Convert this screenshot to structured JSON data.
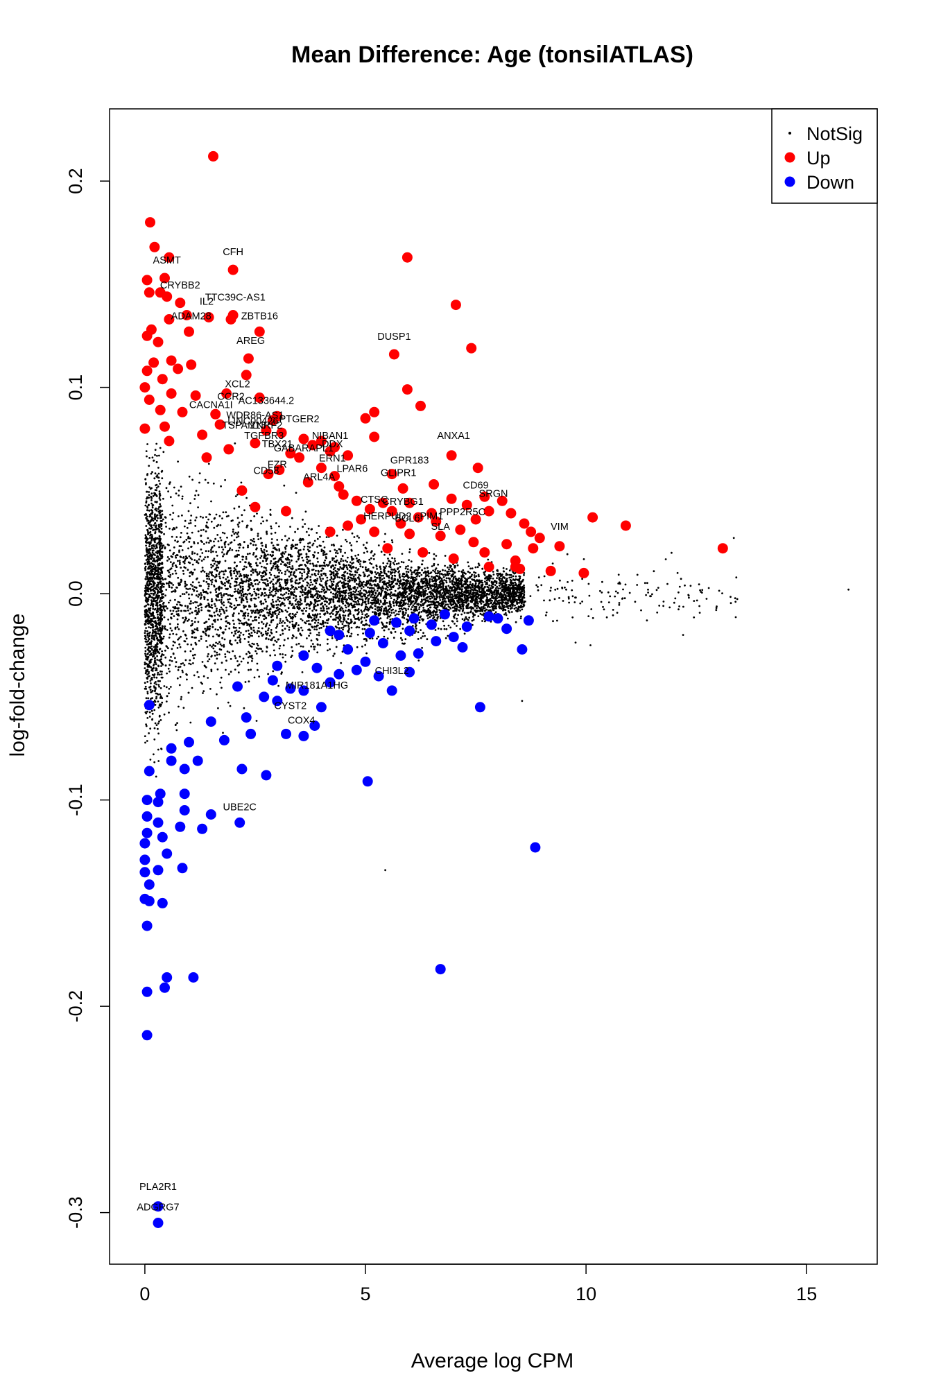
{
  "chart_data": {
    "type": "scatter",
    "title": "Mean Difference: Age (tonsilATLAS)",
    "xlabel": "Average log CPM",
    "ylabel": "log-fold-change",
    "xlim": [
      -0.8,
      16.6
    ],
    "ylim": [
      -0.325,
      0.235
    ],
    "x_ticks": [
      0,
      5,
      10,
      15
    ],
    "x_tick_labels": [
      "0",
      "5",
      "10",
      "15"
    ],
    "y_ticks": [
      -0.3,
      -0.2,
      -0.1,
      0.0,
      0.1,
      0.2
    ],
    "y_tick_labels": [
      "-0.3",
      "-0.2",
      "-0.1",
      "0.0",
      "0.1",
      "0.2"
    ],
    "grid": false,
    "legend_position": "top-right",
    "colors": {
      "NotSig": "#000000",
      "Up": "#ff0000",
      "Down": "#0000ff"
    },
    "legend": [
      {
        "name": "NotSig",
        "color": "#000000",
        "marker": "small-dot"
      },
      {
        "name": "Up",
        "color": "#ff0000",
        "marker": "dot"
      },
      {
        "name": "Down",
        "color": "#0000ff",
        "marker": "dot"
      }
    ],
    "series": [
      {
        "name": "Up",
        "points": [
          [
            1.55,
            0.212
          ],
          [
            0.12,
            0.18
          ],
          [
            0.22,
            0.168
          ],
          [
            0.55,
            0.163
          ],
          [
            5.95,
            0.163
          ],
          [
            2.0,
            0.157
          ],
          [
            0.45,
            0.153
          ],
          [
            0.05,
            0.152
          ],
          [
            0.35,
            0.146
          ],
          [
            0.5,
            0.144
          ],
          [
            0.1,
            0.146
          ],
          [
            0.8,
            0.141
          ],
          [
            7.05,
            0.14
          ],
          [
            0.95,
            0.135
          ],
          [
            2.0,
            0.135
          ],
          [
            1.45,
            0.134
          ],
          [
            1.95,
            0.133
          ],
          [
            0.55,
            0.133
          ],
          [
            2.6,
            0.127
          ],
          [
            0.15,
            0.128
          ],
          [
            1.0,
            0.127
          ],
          [
            0.05,
            0.125
          ],
          [
            0.3,
            0.122
          ],
          [
            7.4,
            0.119
          ],
          [
            5.65,
            0.116
          ],
          [
            2.35,
            0.114
          ],
          [
            0.6,
            0.113
          ],
          [
            0.2,
            0.112
          ],
          [
            1.05,
            0.111
          ],
          [
            0.75,
            0.109
          ],
          [
            2.3,
            0.106
          ],
          [
            0.05,
            0.108
          ],
          [
            0.4,
            0.104
          ],
          [
            5.95,
            0.099
          ],
          [
            0.0,
            0.1
          ],
          [
            1.85,
            0.097
          ],
          [
            0.6,
            0.097
          ],
          [
            1.15,
            0.096
          ],
          [
            0.1,
            0.094
          ],
          [
            2.6,
            0.095
          ],
          [
            6.25,
            0.091
          ],
          [
            5.2,
            0.088
          ],
          [
            0.85,
            0.088
          ],
          [
            0.35,
            0.089
          ],
          [
            1.6,
            0.087
          ],
          [
            3.0,
            0.086
          ],
          [
            5.0,
            0.085
          ],
          [
            2.9,
            0.084
          ],
          [
            1.7,
            0.082
          ],
          [
            0.45,
            0.081
          ],
          [
            0.0,
            0.08
          ],
          [
            2.75,
            0.079
          ],
          [
            3.1,
            0.078
          ],
          [
            1.3,
            0.077
          ],
          [
            3.6,
            0.075
          ],
          [
            5.2,
            0.076
          ],
          [
            4.0,
            0.074
          ],
          [
            0.55,
            0.074
          ],
          [
            3.8,
            0.072
          ],
          [
            4.3,
            0.071
          ],
          [
            2.5,
            0.073
          ],
          [
            6.95,
            0.067
          ],
          [
            3.3,
            0.068
          ],
          [
            4.2,
            0.069
          ],
          [
            1.9,
            0.07
          ],
          [
            4.6,
            0.067
          ],
          [
            3.5,
            0.066
          ],
          [
            1.4,
            0.066
          ],
          [
            7.55,
            0.061
          ],
          [
            4.0,
            0.061
          ],
          [
            3.05,
            0.06
          ],
          [
            5.6,
            0.058
          ],
          [
            2.8,
            0.058
          ],
          [
            4.3,
            0.057
          ],
          [
            3.7,
            0.054
          ],
          [
            6.55,
            0.053
          ],
          [
            4.4,
            0.052
          ],
          [
            5.85,
            0.051
          ],
          [
            2.2,
            0.05
          ],
          [
            4.5,
            0.048
          ],
          [
            7.7,
            0.047
          ],
          [
            6.95,
            0.046
          ],
          [
            4.8,
            0.045
          ],
          [
            5.4,
            0.044
          ],
          [
            8.1,
            0.045
          ],
          [
            6.0,
            0.044
          ],
          [
            7.3,
            0.043
          ],
          [
            2.5,
            0.042
          ],
          [
            5.1,
            0.041
          ],
          [
            3.2,
            0.04
          ],
          [
            5.6,
            0.04
          ],
          [
            6.5,
            0.039
          ],
          [
            7.8,
            0.04
          ],
          [
            8.3,
            0.039
          ],
          [
            6.2,
            0.037
          ],
          [
            4.9,
            0.036
          ],
          [
            6.6,
            0.035
          ],
          [
            7.5,
            0.036
          ],
          [
            5.8,
            0.034
          ],
          [
            8.6,
            0.034
          ],
          [
            10.15,
            0.037
          ],
          [
            4.6,
            0.033
          ],
          [
            7.15,
            0.031
          ],
          [
            8.75,
            0.03
          ],
          [
            10.9,
            0.033
          ],
          [
            5.2,
            0.03
          ],
          [
            6.0,
            0.029
          ],
          [
            8.95,
            0.027
          ],
          [
            6.7,
            0.028
          ],
          [
            4.2,
            0.03
          ],
          [
            7.45,
            0.025
          ],
          [
            8.2,
            0.024
          ],
          [
            9.4,
            0.023
          ],
          [
            8.8,
            0.022
          ],
          [
            13.1,
            0.022
          ],
          [
            5.5,
            0.022
          ],
          [
            7.7,
            0.02
          ],
          [
            6.3,
            0.02
          ],
          [
            8.4,
            0.016
          ],
          [
            7.0,
            0.017
          ],
          [
            8.4,
            0.013
          ],
          [
            7.8,
            0.013
          ],
          [
            9.2,
            0.011
          ],
          [
            9.95,
            0.01
          ],
          [
            8.5,
            0.012
          ]
        ]
      },
      {
        "name": "Down",
        "points": [
          [
            0.3,
            -0.305
          ],
          [
            0.3,
            -0.297
          ],
          [
            0.05,
            -0.214
          ],
          [
            0.05,
            -0.193
          ],
          [
            0.45,
            -0.191
          ],
          [
            0.5,
            -0.186
          ],
          [
            1.1,
            -0.186
          ],
          [
            6.7,
            -0.182
          ],
          [
            0.05,
            -0.161
          ],
          [
            0.4,
            -0.15
          ],
          [
            0.1,
            -0.149
          ],
          [
            0.0,
            -0.148
          ],
          [
            0.1,
            -0.141
          ],
          [
            0.0,
            -0.135
          ],
          [
            0.3,
            -0.134
          ],
          [
            0.85,
            -0.133
          ],
          [
            0.0,
            -0.129
          ],
          [
            0.5,
            -0.126
          ],
          [
            8.85,
            -0.123
          ],
          [
            0.0,
            -0.121
          ],
          [
            0.4,
            -0.118
          ],
          [
            0.05,
            -0.116
          ],
          [
            1.3,
            -0.114
          ],
          [
            0.8,
            -0.113
          ],
          [
            0.3,
            -0.111
          ],
          [
            2.15,
            -0.111
          ],
          [
            0.05,
            -0.108
          ],
          [
            1.5,
            -0.107
          ],
          [
            0.9,
            -0.105
          ],
          [
            0.3,
            -0.101
          ],
          [
            0.05,
            -0.1
          ],
          [
            0.35,
            -0.097
          ],
          [
            0.9,
            -0.097
          ],
          [
            5.05,
            -0.091
          ],
          [
            2.75,
            -0.088
          ],
          [
            0.1,
            -0.086
          ],
          [
            0.9,
            -0.085
          ],
          [
            0.6,
            -0.081
          ],
          [
            1.2,
            -0.081
          ],
          [
            2.2,
            -0.085
          ],
          [
            0.6,
            -0.075
          ],
          [
            1.8,
            -0.071
          ],
          [
            1.0,
            -0.072
          ],
          [
            7.6,
            -0.055
          ],
          [
            3.2,
            -0.068
          ],
          [
            3.6,
            -0.069
          ],
          [
            2.4,
            -0.068
          ],
          [
            3.85,
            -0.064
          ],
          [
            1.5,
            -0.062
          ],
          [
            2.3,
            -0.06
          ],
          [
            4.0,
            -0.055
          ],
          [
            3.0,
            -0.052
          ],
          [
            2.7,
            -0.05
          ],
          [
            3.6,
            -0.047
          ],
          [
            5.6,
            -0.047
          ],
          [
            2.1,
            -0.045
          ],
          [
            3.3,
            -0.046
          ],
          [
            4.2,
            -0.043
          ],
          [
            0.1,
            -0.054
          ],
          [
            6.0,
            -0.038
          ],
          [
            5.3,
            -0.04
          ],
          [
            4.4,
            -0.039
          ],
          [
            2.9,
            -0.042
          ],
          [
            3.9,
            -0.036
          ],
          [
            4.8,
            -0.037
          ],
          [
            5.0,
            -0.033
          ],
          [
            5.8,
            -0.03
          ],
          [
            6.2,
            -0.029
          ],
          [
            8.55,
            -0.027
          ],
          [
            7.2,
            -0.026
          ],
          [
            4.6,
            -0.027
          ],
          [
            3.6,
            -0.03
          ],
          [
            6.6,
            -0.023
          ],
          [
            5.4,
            -0.024
          ],
          [
            7.0,
            -0.021
          ],
          [
            5.1,
            -0.019
          ],
          [
            6.0,
            -0.018
          ],
          [
            4.4,
            -0.02
          ],
          [
            8.2,
            -0.017
          ],
          [
            7.3,
            -0.016
          ],
          [
            6.5,
            -0.015
          ],
          [
            5.7,
            -0.014
          ],
          [
            8.7,
            -0.013
          ],
          [
            7.8,
            -0.011
          ],
          [
            6.8,
            -0.01
          ],
          [
            8.0,
            -0.012
          ],
          [
            5.2,
            -0.013
          ],
          [
            6.1,
            -0.012
          ],
          [
            4.2,
            -0.018
          ],
          [
            3.0,
            -0.035
          ]
        ]
      }
    ],
    "annotations": [
      {
        "text": "ASMT",
        "x": 0.5,
        "y": 0.16
      },
      {
        "text": "CFH",
        "x": 2.0,
        "y": 0.164
      },
      {
        "text": "CRYBB2",
        "x": 0.8,
        "y": 0.148
      },
      {
        "text": "TTC39C-AS1",
        "x": 2.05,
        "y": 0.142
      },
      {
        "text": "IL2",
        "x": 1.4,
        "y": 0.14
      },
      {
        "text": "ADAM28",
        "x": 1.05,
        "y": 0.133
      },
      {
        "text": "ZBTB16",
        "x": 2.6,
        "y": 0.133
      },
      {
        "text": "AREG",
        "x": 2.4,
        "y": 0.121
      },
      {
        "text": "DUSP1",
        "x": 5.65,
        "y": 0.123
      },
      {
        "text": "XCL2",
        "x": 2.1,
        "y": 0.1
      },
      {
        "text": "CCR2",
        "x": 1.95,
        "y": 0.094
      },
      {
        "text": "AC133644.2",
        "x": 2.75,
        "y": 0.092
      },
      {
        "text": "CACNA1I",
        "x": 1.5,
        "y": 0.09
      },
      {
        "text": "WDR86-AS1",
        "x": 2.5,
        "y": 0.085
      },
      {
        "text": "LINC00426",
        "x": 2.45,
        "y": 0.082
      },
      {
        "text": "PTGER2",
        "x": 3.5,
        "y": 0.083
      },
      {
        "text": "TSPAN13",
        "x": 2.25,
        "y": 0.08
      },
      {
        "text": "ZNRF2",
        "x": 2.75,
        "y": 0.08
      },
      {
        "text": "NIBAN1",
        "x": 4.2,
        "y": 0.075
      },
      {
        "text": "ANXA1",
        "x": 7.0,
        "y": 0.075
      },
      {
        "text": "TGFBR3",
        "x": 2.7,
        "y": 0.075
      },
      {
        "text": "TBX21",
        "x": 3.0,
        "y": 0.071
      },
      {
        "text": "DDX",
        "x": 4.25,
        "y": 0.071
      },
      {
        "text": "GABARAPL1",
        "x": 3.6,
        "y": 0.069
      },
      {
        "text": "ERN1",
        "x": 4.25,
        "y": 0.064
      },
      {
        "text": "GPR183",
        "x": 6.0,
        "y": 0.063
      },
      {
        "text": "LPAR6",
        "x": 4.7,
        "y": 0.059
      },
      {
        "text": "FZR",
        "x": 3.0,
        "y": 0.061
      },
      {
        "text": "CD58",
        "x": 2.75,
        "y": 0.058
      },
      {
        "text": "GLIPR1",
        "x": 5.75,
        "y": 0.057
      },
      {
        "text": "ARL4A",
        "x": 3.95,
        "y": 0.055
      },
      {
        "text": "CD69",
        "x": 7.5,
        "y": 0.051
      },
      {
        "text": "SRGN",
        "x": 7.9,
        "y": 0.047
      },
      {
        "text": "CTSC",
        "x": 5.2,
        "y": 0.044
      },
      {
        "text": "CRYBG1",
        "x": 5.85,
        "y": 0.043
      },
      {
        "text": "PPP2R5C",
        "x": 7.2,
        "y": 0.038
      },
      {
        "text": "HERPUD2",
        "x": 5.5,
        "y": 0.036
      },
      {
        "text": "PIM1",
        "x": 6.5,
        "y": 0.036
      },
      {
        "text": "BCL6",
        "x": 5.95,
        "y": 0.035
      },
      {
        "text": "SLA",
        "x": 6.7,
        "y": 0.031
      },
      {
        "text": "VIM",
        "x": 9.4,
        "y": 0.031
      },
      {
        "text": "CHI3L2",
        "x": 5.6,
        "y": -0.039
      },
      {
        "text": "MIR181A1HG",
        "x": 3.9,
        "y": -0.046
      },
      {
        "text": "CYST2",
        "x": 3.3,
        "y": -0.056
      },
      {
        "text": "COX4",
        "x": 3.55,
        "y": -0.063
      },
      {
        "text": "UBE2C",
        "x": 2.15,
        "y": -0.105
      },
      {
        "text": "PLA2R1",
        "x": 0.3,
        "y": -0.289
      },
      {
        "text": "ADGRG7",
        "x": 0.3,
        "y": -0.299
      }
    ]
  }
}
